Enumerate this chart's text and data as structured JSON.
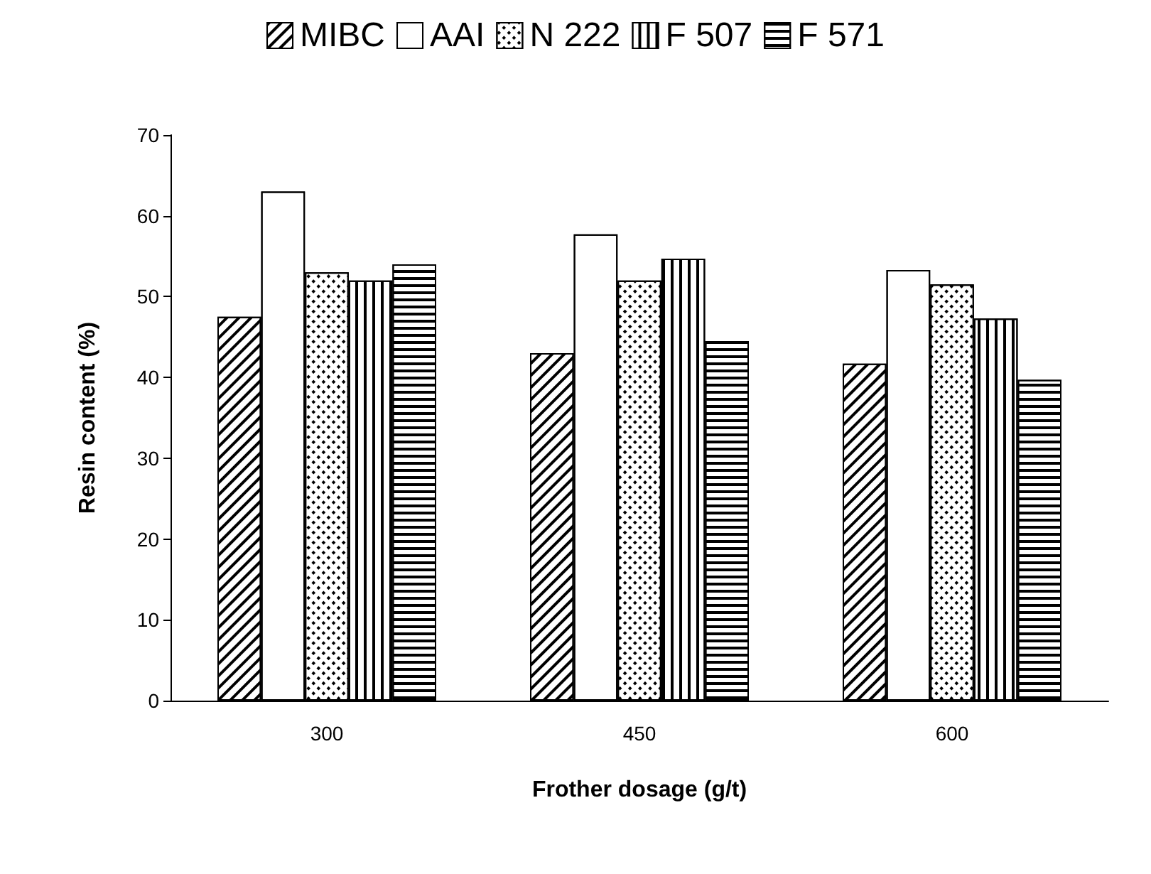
{
  "chart_data": {
    "type": "bar",
    "xlabel": "Frother dosage (g/t)",
    "ylabel": "Resin content (%)",
    "categories": [
      "300",
      "450",
      "600"
    ],
    "series": [
      {
        "name": "MIBC",
        "color": "#ffffff",
        "values": [
          47.5,
          43,
          41.7
        ]
      },
      {
        "name": "AAI",
        "color": "#ffffff",
        "values": [
          63,
          57.7,
          53.3
        ]
      },
      {
        "name": "N 222",
        "color": "#ffffff",
        "values": [
          53,
          52,
          51.5
        ]
      },
      {
        "name": "F 507",
        "color": "#ffffff",
        "values": [
          52,
          54.7,
          47.3
        ]
      },
      {
        "name": "F 571",
        "color": "#ffffff",
        "values": [
          54,
          44.5,
          39.7
        ]
      }
    ],
    "ylim": [
      0,
      70
    ],
    "yticks": [
      0,
      10,
      20,
      30,
      40,
      50,
      60,
      70
    ],
    "grid": false,
    "legend": "top"
  }
}
